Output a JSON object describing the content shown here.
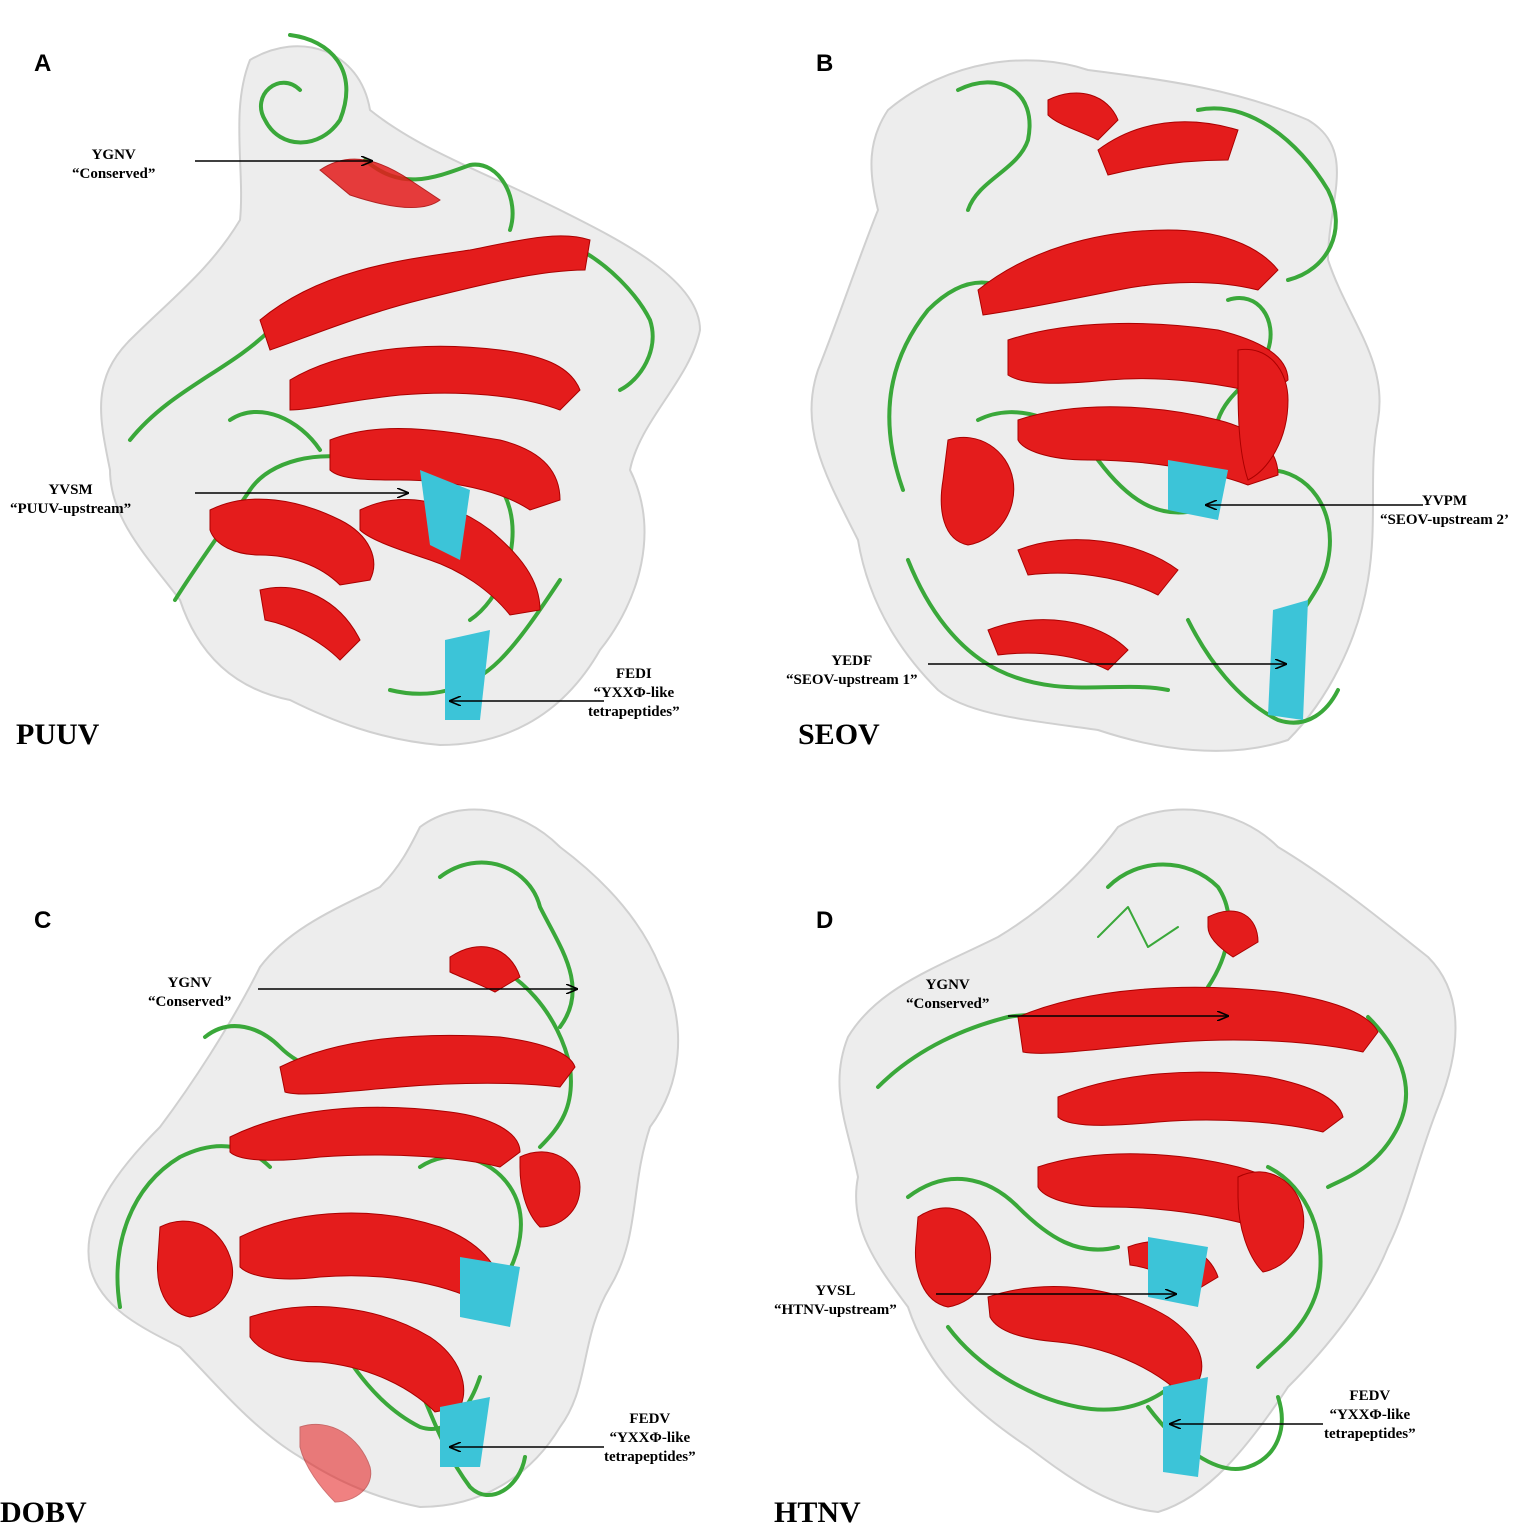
{
  "panels": [
    {
      "letter": "A",
      "virus": "PUUV",
      "annotations": [
        {
          "motif": "YGNV",
          "label": "“Conserved”"
        },
        {
          "motif": "YVSM",
          "label": "“PUUV-upstream”"
        },
        {
          "motif": "FEDI",
          "label": "“YXXΦ-like",
          "label2": "tetrapeptides”"
        }
      ]
    },
    {
      "letter": "B",
      "virus": "SEOV",
      "annotations": [
        {
          "motif": "YVPM",
          "label": "“SEOV-upstream  2’"
        },
        {
          "motif": "YEDF",
          "label": "“SEOV-upstream  1”"
        }
      ]
    },
    {
      "letter": "C",
      "virus": "DOBV",
      "annotations": [
        {
          "motif": "YGNV",
          "label": "“Conserved”"
        },
        {
          "motif": "FEDV",
          "label": "“YXXΦ-like",
          "label2": "tetrapeptides”"
        }
      ]
    },
    {
      "letter": "D",
      "virus": "HTNV",
      "annotations": [
        {
          "motif": "YGNV",
          "label": "“Conserved”"
        },
        {
          "motif": "YVSL",
          "label": "“HTNV-upstream”"
        },
        {
          "motif": "FEDV",
          "label": "“YXXΦ-like",
          "label2": "tetrapeptides”"
        }
      ]
    }
  ],
  "colors": {
    "helix": "#e41c1c",
    "coil": "#3aa83a",
    "strand": "#3cc4d8",
    "surface": "#ececec",
    "text": "#000000"
  }
}
